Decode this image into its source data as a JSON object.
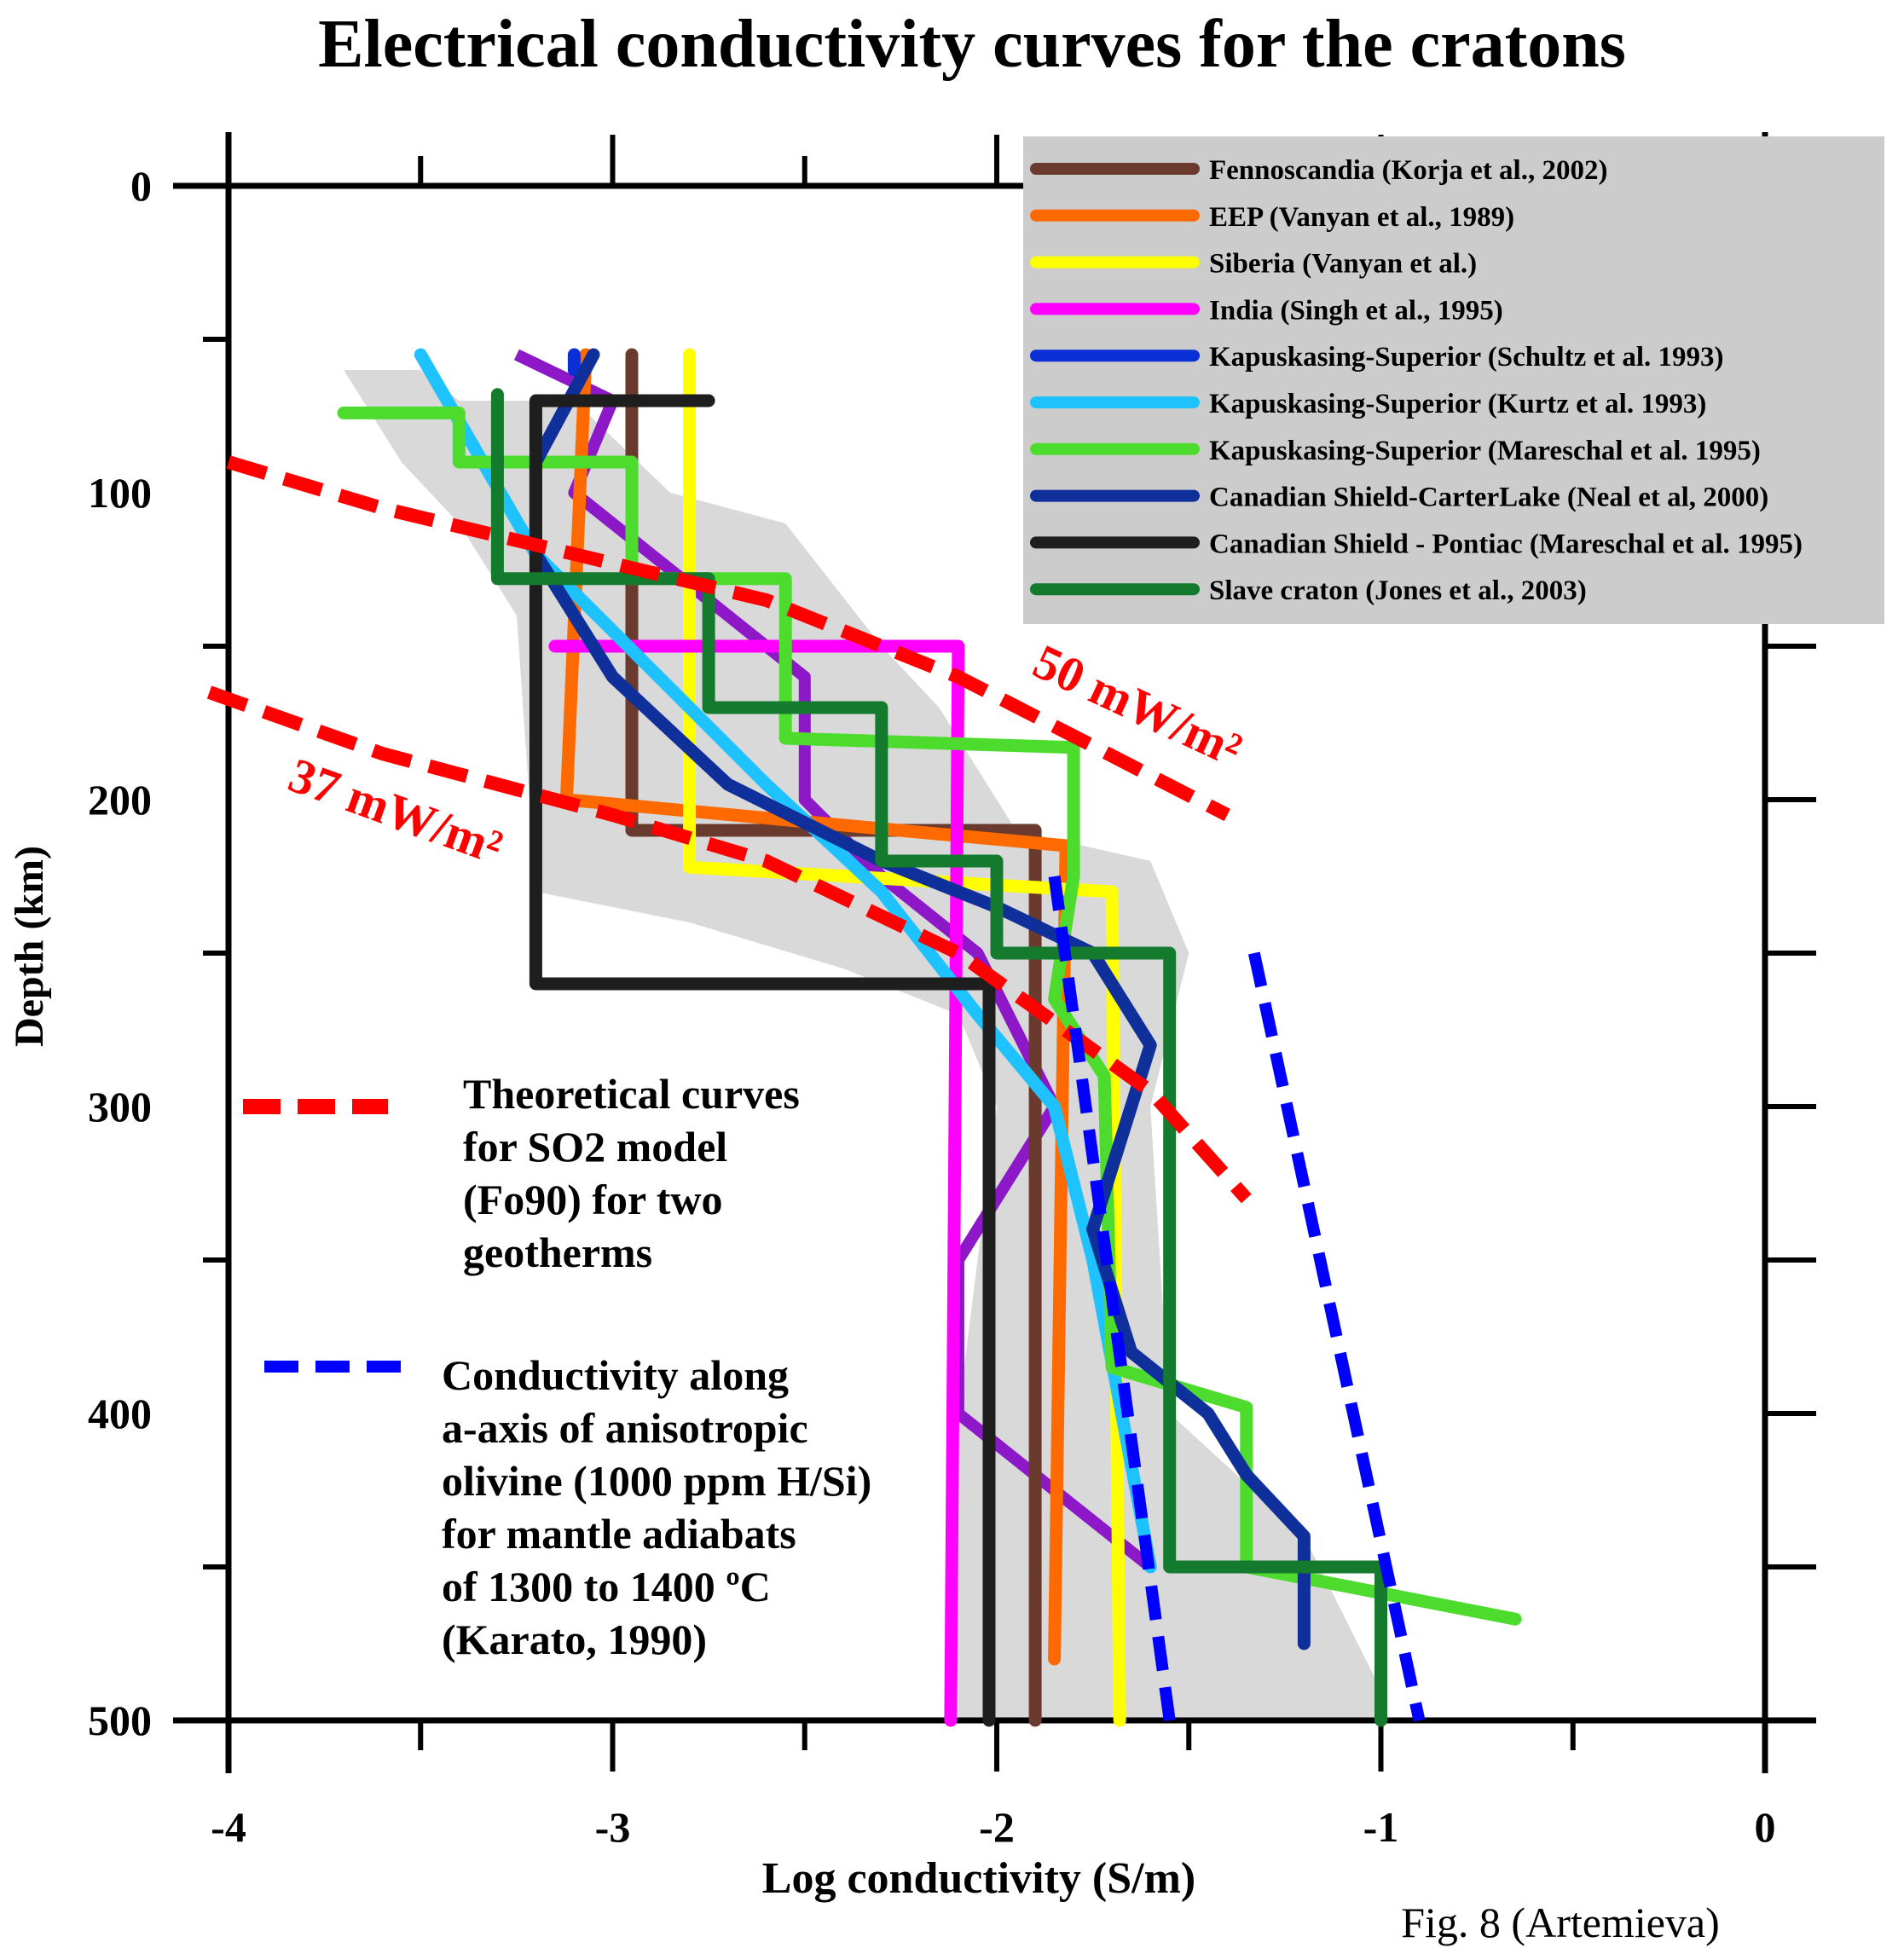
{
  "chart_data": {
    "type": "line",
    "title": "Electrical conductivity curves for the cratons",
    "xlabel": "Log conductivity (S/m)",
    "ylabel": "Depth (km)",
    "xlim": [
      -4,
      0
    ],
    "ylim": [
      0,
      500
    ],
    "y_inverted": true,
    "x_ticks": [
      "-4",
      "-3",
      "-2",
      "-1",
      "0"
    ],
    "y_ticks": [
      "0",
      "100",
      "200",
      "300",
      "400",
      "500"
    ],
    "legend_position": "top-right",
    "figure_label": "Fig. 8 (Artemieva)",
    "shaded_region": [
      [
        -3.7,
        60
      ],
      [
        -3.5,
        60
      ],
      [
        -3.4,
        70
      ],
      [
        -3.1,
        70
      ],
      [
        -2.85,
        100
      ],
      [
        -2.55,
        110
      ],
      [
        -2.3,
        150
      ],
      [
        -2.15,
        170
      ],
      [
        -1.95,
        210
      ],
      [
        -1.6,
        220
      ],
      [
        -1.5,
        250
      ],
      [
        -1.6,
        300
      ],
      [
        -1.55,
        400
      ],
      [
        -1.2,
        440
      ],
      [
        -1.0,
        490
      ],
      [
        -1.0,
        500
      ],
      [
        -2.1,
        500
      ],
      [
        -2.1,
        400
      ],
      [
        -2.05,
        350
      ],
      [
        -2.0,
        300
      ],
      [
        -2.1,
        270
      ],
      [
        -2.4,
        255
      ],
      [
        -2.8,
        240
      ],
      [
        -3.2,
        230
      ],
      [
        -3.25,
        140
      ],
      [
        -3.4,
        110
      ],
      [
        -3.55,
        90
      ]
    ],
    "series": [
      {
        "name": "Fennoscandia (Korja et al., 2002)",
        "color": "#6b3a2e",
        "points": [
          [
            -2.95,
            55
          ],
          [
            -2.95,
            210
          ],
          [
            -1.9,
            210
          ],
          [
            -1.9,
            500
          ]
        ]
      },
      {
        "name": "EEP (Vanyan et al., 1989)",
        "color": "#ff6a00",
        "points": [
          [
            -3.07,
            55
          ],
          [
            -3.12,
            200
          ],
          [
            -1.82,
            215
          ],
          [
            -1.85,
            480
          ]
        ]
      },
      {
        "name": "Siberia (Vanyan et al.)",
        "color": "#ffff00",
        "points": [
          [
            -2.8,
            55
          ],
          [
            -2.8,
            222
          ],
          [
            -1.7,
            230
          ],
          [
            -1.68,
            500
          ]
        ]
      },
      {
        "name": "India (Singh et al., 1995)",
        "color": "#ff00ff",
        "points": [
          [
            -3.15,
            150
          ],
          [
            -2.1,
            150
          ],
          [
            -2.12,
            500
          ]
        ]
      },
      {
        "name": "Kapuskasing-Superior (Schultz et al. 1993)",
        "color": "#0a2fd6",
        "points": [
          [
            -3.1,
            55
          ],
          [
            -3.1,
            60
          ]
        ]
      },
      {
        "name": "Kapuskasing-Superior (Kurtz et al. 1993)",
        "color": "#1ec2ff",
        "points": [
          [
            -3.5,
            55
          ],
          [
            -3.2,
            120
          ],
          [
            -2.6,
            195
          ],
          [
            -2.3,
            230
          ],
          [
            -2.05,
            270
          ],
          [
            -1.85,
            300
          ],
          [
            -1.75,
            350
          ],
          [
            -1.6,
            450
          ]
        ]
      },
      {
        "name": "Kapuskasing-Superior (Mareschal et al. 1995)",
        "color": "#4ddc2e",
        "points": [
          [
            -3.7,
            74
          ],
          [
            -3.4,
            74
          ],
          [
            -3.4,
            90
          ],
          [
            -2.95,
            90
          ],
          [
            -2.95,
            128
          ],
          [
            -2.55,
            128
          ],
          [
            -2.55,
            180
          ],
          [
            -1.8,
            183
          ],
          [
            -1.8,
            225
          ],
          [
            -1.85,
            265
          ],
          [
            -1.72,
            290
          ],
          [
            -1.7,
            385
          ],
          [
            -1.35,
            398
          ],
          [
            -1.35,
            450
          ],
          [
            -0.65,
            467
          ]
        ]
      },
      {
        "name": "Canadian Shield-CarterLake (Neal et al, 2000)",
        "color": "#0f2f9a",
        "points": [
          [
            -3.05,
            55
          ],
          [
            -3.2,
            90
          ],
          [
            -3.2,
            120
          ],
          [
            -3.0,
            160
          ],
          [
            -2.7,
            195
          ],
          [
            -2.3,
            220
          ],
          [
            -2.0,
            235
          ],
          [
            -1.75,
            250
          ],
          [
            -1.6,
            280
          ],
          [
            -1.75,
            340
          ],
          [
            -1.65,
            380
          ],
          [
            -1.45,
            400
          ],
          [
            -1.35,
            420
          ],
          [
            -1.2,
            440
          ],
          [
            -1.2,
            475
          ]
        ]
      },
      {
        "name": "Canadian Shield - Pontiac (Mareschal et al. 1995)",
        "color": "#1e1e1e",
        "points": [
          [
            -2.75,
            70
          ],
          [
            -3.2,
            70
          ],
          [
            -3.2,
            260
          ],
          [
            -2.02,
            260
          ],
          [
            -2.02,
            500
          ]
        ]
      },
      {
        "name": "Slave craton (Jones et al., 2003)",
        "color": "#137a2e",
        "points": [
          [
            -3.3,
            68
          ],
          [
            -3.3,
            128
          ],
          [
            -2.75,
            128
          ],
          [
            -2.75,
            170
          ],
          [
            -2.3,
            170
          ],
          [
            -2.3,
            220
          ],
          [
            -2.0,
            220
          ],
          [
            -2.0,
            250
          ],
          [
            -1.55,
            250
          ],
          [
            -1.55,
            450
          ],
          [
            -1.0,
            450
          ],
          [
            -1.0,
            500
          ]
        ]
      }
    ],
    "extra_series": [
      {
        "color": "#8c18c8",
        "points": [
          [
            -3.25,
            55
          ],
          [
            -3.0,
            70
          ],
          [
            -3.1,
            100
          ],
          [
            -2.8,
            130
          ],
          [
            -2.5,
            160
          ],
          [
            -2.5,
            200
          ],
          [
            -2.3,
            225
          ],
          [
            -2.05,
            250
          ],
          [
            -1.85,
            300
          ],
          [
            -2.1,
            350
          ],
          [
            -2.1,
            400
          ],
          [
            -1.6,
            450
          ]
        ]
      }
    ],
    "theoretical_curves": {
      "legend": "Theoretical curves for SO2 model (Fo90) for two geotherms",
      "color": "#ff0000",
      "curves": [
        {
          "label": "50 mW/m²",
          "points": [
            [
              -4.0,
              90
            ],
            [
              -3.6,
              105
            ],
            [
              -2.6,
              135
            ],
            [
              -2.1,
              160
            ],
            [
              -1.4,
              205
            ]
          ]
        },
        {
          "label": "37 mW/m²",
          "points": [
            [
              -4.05,
              165
            ],
            [
              -3.6,
              185
            ],
            [
              -3.0,
              205
            ],
            [
              -2.6,
              220
            ],
            [
              -2.1,
              250
            ],
            [
              -1.6,
              295
            ],
            [
              -1.35,
              330
            ]
          ]
        }
      ]
    },
    "anisotropic_curves": {
      "legend": "Conductivity along a-axis of anisotropic olivine (1000 ppm H/Si) for mantle adiabats of 1300 to 1400 ºC (Karato, 1990)",
      "color": "#0000ff",
      "curves": [
        {
          "points": [
            [
              -1.85,
              225
            ],
            [
              -1.55,
              500
            ]
          ]
        },
        {
          "points": [
            [
              -1.33,
              250
            ],
            [
              -0.9,
              500
            ]
          ]
        }
      ]
    }
  },
  "legend_box": {
    "fill": "#cccccc",
    "items": [
      {
        "label": "Fennoscandia (Korja et al., 2002)",
        "color": "#6b3a2e"
      },
      {
        "label": "EEP (Vanyan et al., 1989)",
        "color": "#ff6a00"
      },
      {
        "label": "Siberia (Vanyan et al.)",
        "color": "#ffff00"
      },
      {
        "label": "India (Singh et al., 1995)",
        "color": "#ff00ff"
      },
      {
        "label": "Kapuskasing-Superior (Schultz et al. 1993)",
        "color": "#0a2fd6"
      },
      {
        "label": "Kapuskasing-Superior (Kurtz et al. 1993)",
        "color": "#1ec2ff"
      },
      {
        "label": "Kapuskasing-Superior (Mareschal et al. 1995)",
        "color": "#4ddc2e"
      },
      {
        "label": "Canadian Shield-CarterLake (Neal et al, 2000)",
        "color": "#0f2f9a"
      },
      {
        "label": "Canadian Shield - Pontiac (Mareschal et al. 1995)",
        "color": "#1e1e1e"
      },
      {
        "label": "Slave craton (Jones et al., 2003)",
        "color": "#137a2e"
      }
    ]
  },
  "annotations": {
    "theoretical_lines": [
      "Theoretical curves",
      "for SO2 model",
      "(Fo90) for two",
      "geotherms"
    ],
    "aniso_lines": [
      "Conductivity along",
      "a-axis of anisotropic",
      "olivine (1000 ppm H/Si)",
      "for mantle adiabats",
      "of 1300 to 1400 ºC",
      "(Karato, 1990)"
    ],
    "label_50": "50 mW/m²",
    "label_37": "37 mW/m²"
  }
}
